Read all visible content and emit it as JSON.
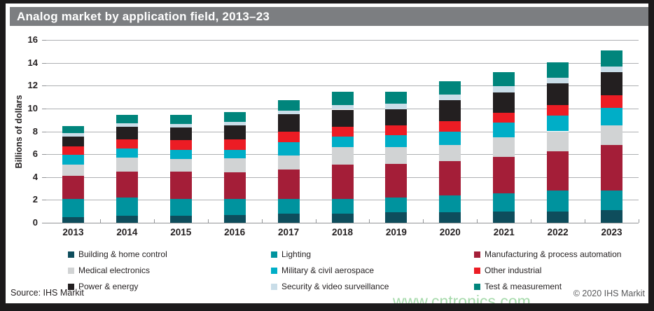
{
  "title": "Analog market by application field, 2013–23",
  "source": "Source: IHS Markit",
  "copyright": "© 2020 IHS Markit",
  "watermark": "www.cntronics.com",
  "colors": {
    "title_bar": "#7c7e81",
    "frame": "#1c1a1b",
    "gridline": "#aeb0b3",
    "axis_line": "#939598",
    "tick": "#939598",
    "axis_text": "#231f20",
    "legend_text": "#231f20",
    "copyright_text": "#58595b",
    "watermark_text": "#a6daab"
  },
  "chart_data": {
    "type": "bar",
    "stacked": true,
    "title": "Analog market by application field, 2013–23",
    "xlabel": "",
    "ylabel": "Billions of dollars",
    "ylim": [
      0,
      16
    ],
    "yticks": [
      0,
      2,
      4,
      6,
      8,
      10,
      12,
      14,
      16
    ],
    "grid": true,
    "legend_position": "bottom",
    "categories": [
      "2013",
      "2014",
      "2015",
      "2016",
      "2017",
      "2018",
      "2019",
      "2020",
      "2021",
      "2022",
      "2023"
    ],
    "series": [
      {
        "name": "Building & home control",
        "color": "#0e4d5c",
        "values": [
          0.5,
          0.6,
          0.6,
          0.7,
          0.8,
          0.8,
          0.9,
          0.9,
          1.0,
          1.0,
          1.1
        ]
      },
      {
        "name": "Lighting",
        "color": "#00939e",
        "values": [
          1.6,
          1.6,
          1.5,
          1.4,
          1.3,
          1.3,
          1.3,
          1.5,
          1.6,
          1.8,
          1.7
        ]
      },
      {
        "name": "Manufacturing & process automation",
        "color": "#a41e38",
        "values": [
          2.0,
          2.3,
          2.35,
          2.3,
          2.55,
          3.0,
          2.95,
          3.0,
          3.15,
          3.45,
          4.0
        ]
      },
      {
        "name": "Medical electronics",
        "color": "#d1d3d4",
        "values": [
          1.0,
          1.2,
          1.15,
          1.25,
          1.25,
          1.5,
          1.5,
          1.4,
          1.7,
          1.75,
          1.7
        ]
      },
      {
        "name": "Military & civil aerospace",
        "color": "#00aec7",
        "values": [
          0.85,
          0.8,
          0.75,
          0.7,
          1.15,
          0.95,
          1.0,
          1.15,
          1.3,
          1.35,
          1.55
        ]
      },
      {
        "name": "Other industrial",
        "color": "#ec1c24",
        "values": [
          0.75,
          0.8,
          0.9,
          0.95,
          0.95,
          0.85,
          0.9,
          0.95,
          0.9,
          0.95,
          1.1
        ]
      },
      {
        "name": "Power & energy",
        "color": "#231f20",
        "values": [
          0.85,
          1.1,
          1.1,
          1.2,
          1.5,
          1.5,
          1.4,
          1.8,
          1.75,
          1.9,
          2.05
        ]
      },
      {
        "name": "Security & video surveillance",
        "color": "#c9dde8",
        "values": [
          0.3,
          0.3,
          0.3,
          0.3,
          0.3,
          0.4,
          0.45,
          0.5,
          0.55,
          0.5,
          0.5
        ]
      },
      {
        "name": "Test & measurement",
        "color": "#00857c",
        "values": [
          0.6,
          0.75,
          0.8,
          0.9,
          0.9,
          1.15,
          1.05,
          1.2,
          1.25,
          1.35,
          1.4
        ]
      }
    ],
    "totals": [
      8.45,
      9.45,
      9.45,
      9.7,
      10.7,
      11.45,
      11.45,
      12.4,
      13.2,
      14.05,
      15.1
    ]
  }
}
